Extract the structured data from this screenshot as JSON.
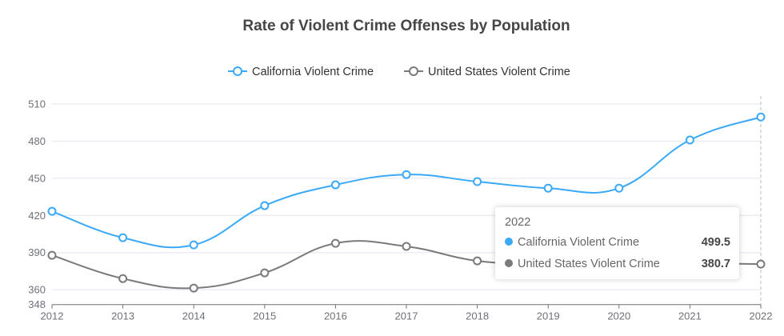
{
  "chart_data": {
    "type": "line",
    "title": "Rate of Violent Crime Offenses by Population",
    "categories": [
      "2012",
      "2013",
      "2014",
      "2015",
      "2016",
      "2017",
      "2018",
      "2019",
      "2020",
      "2021",
      "2022"
    ],
    "series": [
      {
        "name": "California Violent Crime",
        "color": "#3ba9f5",
        "values": [
          423.3,
          402.0,
          396.2,
          427.9,
          444.7,
          453.0,
          447.3,
          442.0,
          442.0,
          480.9,
          499.5
        ]
      },
      {
        "name": "United States Violent Crime",
        "color": "#7a7a7a",
        "values": [
          387.8,
          369.0,
          361.3,
          373.6,
          397.5,
          395.0,
          383.3,
          381.0,
          382.0,
          381.5,
          380.7
        ]
      }
    ],
    "yticks": [
      "348",
      "360",
      "390",
      "420",
      "450",
      "480",
      "510"
    ],
    "ylim": [
      348,
      510
    ],
    "grid": true,
    "legend_position": "top-center",
    "smooth": true
  },
  "tooltip": {
    "header": "2022",
    "rows": [
      {
        "label": "California Violent Crime",
        "value": "499.5",
        "color": "#3ba9f5"
      },
      {
        "label": "United States Violent Crime",
        "value": "380.7",
        "color": "#7a7a7a"
      }
    ]
  }
}
